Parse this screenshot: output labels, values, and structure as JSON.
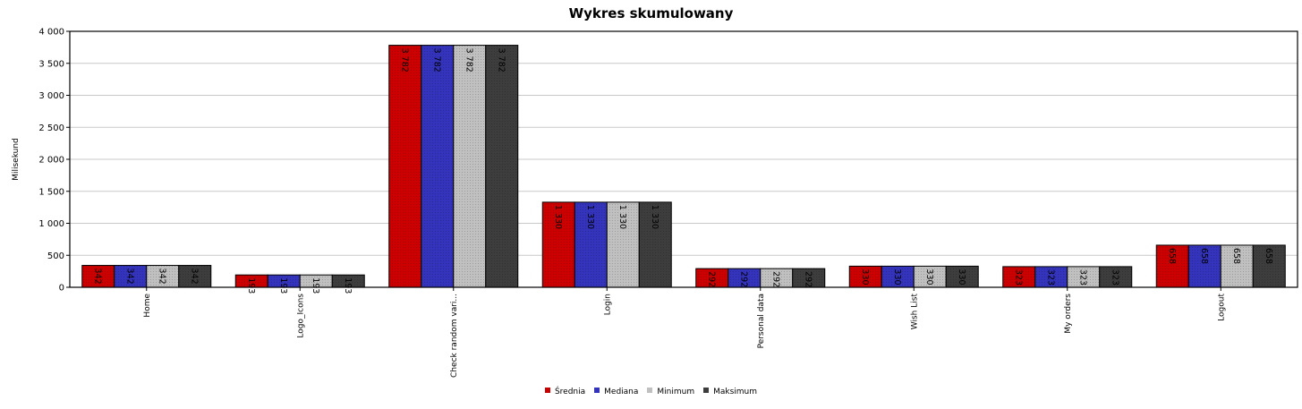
{
  "chart_data": {
    "type": "bar",
    "title": "Wykres skumulowany",
    "ylabel": "Milisekund",
    "xlabel": "",
    "ylim": [
      0,
      4000
    ],
    "yticks": [
      0,
      500,
      1000,
      1500,
      2000,
      2500,
      3000,
      3500,
      4000
    ],
    "ytick_labels": [
      "0",
      "500",
      "1 000",
      "1 500",
      "2 000",
      "2 500",
      "3 000",
      "3 500",
      "4 000"
    ],
    "grid": true,
    "legend_position": "bottom",
    "categories": [
      "Home",
      "Logo_Icons",
      "Check random vari...",
      "Login",
      "Personal data",
      "Wish List",
      "My orders",
      "Logout"
    ],
    "series": [
      {
        "name": "Średnia",
        "color": "#cc0000",
        "values": [
          342,
          193,
          3782,
          1330,
          292,
          330,
          323,
          658
        ],
        "labels": [
          "342",
          "193",
          "3 782",
          "1 330",
          "292",
          "330",
          "323",
          "658"
        ]
      },
      {
        "name": "Mediana",
        "color": "#3333bb",
        "values": [
          342,
          193,
          3782,
          1330,
          292,
          330,
          323,
          658
        ],
        "labels": [
          "342",
          "193",
          "3 782",
          "1 330",
          "292",
          "330",
          "323",
          "658"
        ]
      },
      {
        "name": "Minimum",
        "color": "#c0c0c0",
        "values": [
          342,
          193,
          3782,
          1330,
          292,
          330,
          323,
          658
        ],
        "labels": [
          "342",
          "193",
          "3 782",
          "1 330",
          "292",
          "330",
          "323",
          "658"
        ]
      },
      {
        "name": "Maksimum",
        "color": "#3d3d3d",
        "values": [
          342,
          193,
          3782,
          1330,
          292,
          330,
          323,
          658
        ],
        "labels": [
          "342",
          "193",
          "3 782",
          "1 330",
          "292",
          "330",
          "323",
          "658"
        ]
      }
    ]
  }
}
